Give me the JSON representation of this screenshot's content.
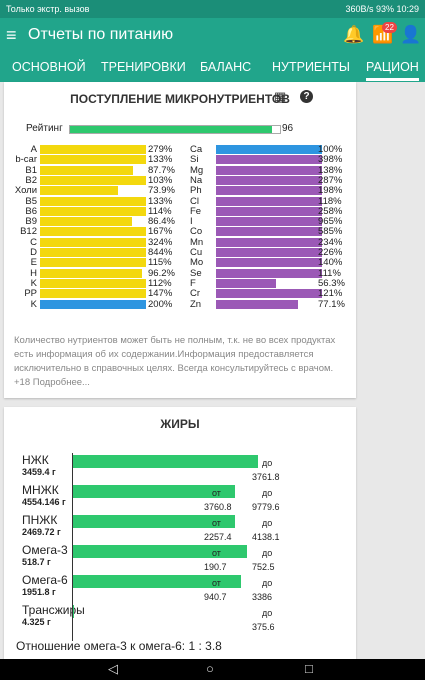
{
  "status": {
    "left": "Только экстр. вызов",
    "right": "360B/s  93%  10:29"
  },
  "appbar": {
    "title": "Отчеты по питанию",
    "badge": "22",
    "menu_icon": "≡",
    "bell_icon": "🔔",
    "feed_icon": "📶",
    "person_icon": "👤"
  },
  "tabs": [
    "ОСНОВНОЙ",
    "ТРЕНИРОВКИ",
    "БАЛАНС",
    "НУТРИЕНТЫ",
    "РАЦИОН"
  ],
  "micro": {
    "title": "ПОСТУПЛЕНИЕ МИКРОНУТРИЕНТОВ",
    "table_icon": "▦",
    "help_icon": "?",
    "rating_label": "Рейтинг",
    "rating_value": "96",
    "rating_fraction": 0.96,
    "colors": {
      "vitamin": "#f3d80e",
      "mineral": "#9b59b6",
      "highlight": "#2e95e0",
      "rating": "#2ec86e"
    },
    "vitamins": [
      {
        "name": "A",
        "pct": "279%",
        "value": 279,
        "highlight": false
      },
      {
        "name": "b-car",
        "pct": "133%",
        "value": 133,
        "highlight": false
      },
      {
        "name": "B1",
        "pct": "87.7%",
        "value": 87.7,
        "highlight": false
      },
      {
        "name": "B2",
        "pct": "103%",
        "value": 103,
        "highlight": false
      },
      {
        "name": "Холи",
        "pct": "73.9%",
        "value": 73.9,
        "highlight": false
      },
      {
        "name": "B5",
        "pct": "133%",
        "value": 133,
        "highlight": false
      },
      {
        "name": "B6",
        "pct": "114%",
        "value": 114,
        "highlight": false
      },
      {
        "name": "B9",
        "pct": "86.4%",
        "value": 86.4,
        "highlight": false
      },
      {
        "name": "B12",
        "pct": "167%",
        "value": 167,
        "highlight": false
      },
      {
        "name": "C",
        "pct": "324%",
        "value": 324,
        "highlight": false
      },
      {
        "name": "D",
        "pct": "844%",
        "value": 844,
        "highlight": false
      },
      {
        "name": "E",
        "pct": "115%",
        "value": 115,
        "highlight": false
      },
      {
        "name": "H",
        "pct": "96.2%",
        "value": 96.2,
        "highlight": false
      },
      {
        "name": "K",
        "pct": "112%",
        "value": 112,
        "highlight": false
      },
      {
        "name": "PP",
        "pct": "147%",
        "value": 147,
        "highlight": false
      },
      {
        "name": "K",
        "pct": "200%",
        "value": 200,
        "highlight": true
      }
    ],
    "minerals": [
      {
        "name": "Ca",
        "pct": "100%",
        "value": 100,
        "highlight": true
      },
      {
        "name": "Si",
        "pct": "398%",
        "value": 398,
        "highlight": false
      },
      {
        "name": "Mg",
        "pct": "138%",
        "value": 138,
        "highlight": false
      },
      {
        "name": "Na",
        "pct": "287%",
        "value": 287,
        "highlight": false
      },
      {
        "name": "Ph",
        "pct": "198%",
        "value": 198,
        "highlight": false
      },
      {
        "name": "Cl",
        "pct": "118%",
        "value": 118,
        "highlight": false
      },
      {
        "name": "Fe",
        "pct": "258%",
        "value": 258,
        "highlight": false
      },
      {
        "name": "I",
        "pct": "965%",
        "value": 965,
        "highlight": false
      },
      {
        "name": "Co",
        "pct": "585%",
        "value": 585,
        "highlight": false
      },
      {
        "name": "Mn",
        "pct": "234%",
        "value": 234,
        "highlight": false
      },
      {
        "name": "Cu",
        "pct": "226%",
        "value": 226,
        "highlight": false
      },
      {
        "name": "Mo",
        "pct": "140%",
        "value": 140,
        "highlight": false
      },
      {
        "name": "Se",
        "pct": "111%",
        "value": 111,
        "highlight": false
      },
      {
        "name": "F",
        "pct": "56.3%",
        "value": 56.3,
        "highlight": false
      },
      {
        "name": "Cr",
        "pct": "121%",
        "value": 121,
        "highlight": false
      },
      {
        "name": "Zn",
        "pct": "77.1%",
        "value": 77.1,
        "highlight": false
      }
    ],
    "disclaimer": "Количество нутриентов может быть не полным, т.к. не во всех продуктах есть информация об их содержании.Информация предоставляется исключительно в справочных целях. Всегда консультируйтесь с врачом. +18 Подробнее..."
  },
  "fats": {
    "title": "ЖИРЫ",
    "items": [
      {
        "name": "НЖК",
        "amount": "3459.4 г",
        "fill": 0.66,
        "from_label": "",
        "from_value": "",
        "to_label": "до",
        "to_value": "3761.8"
      },
      {
        "name": "МНЖК",
        "amount": "4554.146 г",
        "fill": 0.58,
        "from_label": "от",
        "from_value": "3760.8",
        "to_label": "до",
        "to_value": "9779.6"
      },
      {
        "name": "ПНЖК",
        "amount": "2469.72 г",
        "fill": 0.58,
        "from_label": "от",
        "from_value": "2257.4",
        "to_label": "до",
        "to_value": "4138.1"
      },
      {
        "name": "Омега-3",
        "amount": "518.7 г",
        "fill": 0.62,
        "from_label": "от",
        "from_value": "190.7",
        "to_label": "до",
        "to_value": "752.5"
      },
      {
        "name": "Омега-6",
        "amount": "1951.8 г",
        "fill": 0.6,
        "from_label": "от",
        "from_value": "940.7",
        "to_label": "до",
        "to_value": "3386"
      },
      {
        "name": "Трансжиры",
        "amount": "4.325 г",
        "fill": 0.003,
        "from_label": "",
        "from_value": "",
        "to_label": "до",
        "to_value": "375.6"
      }
    ],
    "ratio": "Отношение омега-3 к омега-6: 1 : 3.8"
  },
  "navbar": {
    "back": "◁",
    "home": "○",
    "recent": "□"
  }
}
